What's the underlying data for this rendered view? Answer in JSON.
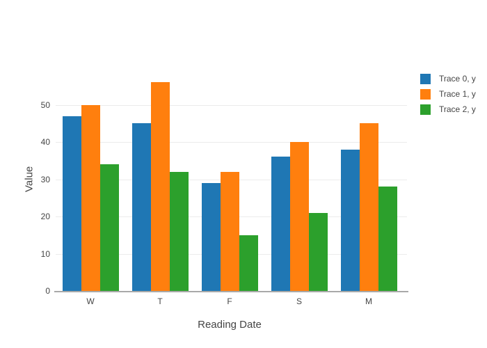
{
  "chart_data": {
    "type": "bar",
    "title": "",
    "categories": [
      "W",
      "T",
      "F",
      "S",
      "M"
    ],
    "series": [
      {
        "name": "Trace 0, y",
        "color": "#1f77b4",
        "values": [
          47,
          45,
          29,
          36,
          38
        ]
      },
      {
        "name": "Trace 1, y",
        "color": "#ff7f0e",
        "values": [
          50,
          56,
          32,
          40,
          45
        ]
      },
      {
        "name": "Trace 2, y",
        "color": "#2ca02c",
        "values": [
          34,
          32,
          15,
          21,
          28
        ]
      }
    ],
    "xlabel": "Reading Date",
    "ylabel": "Value",
    "yticks": [
      0,
      10,
      20,
      30,
      40,
      50
    ],
    "ylim": [
      0,
      60
    ],
    "grid": true,
    "bar_mode": "group",
    "legend_position": "right"
  },
  "colors": {
    "background": "#ffffff",
    "gridline": "#ebebeb",
    "axis_line": "#a9a9a9",
    "text": "#444444"
  }
}
